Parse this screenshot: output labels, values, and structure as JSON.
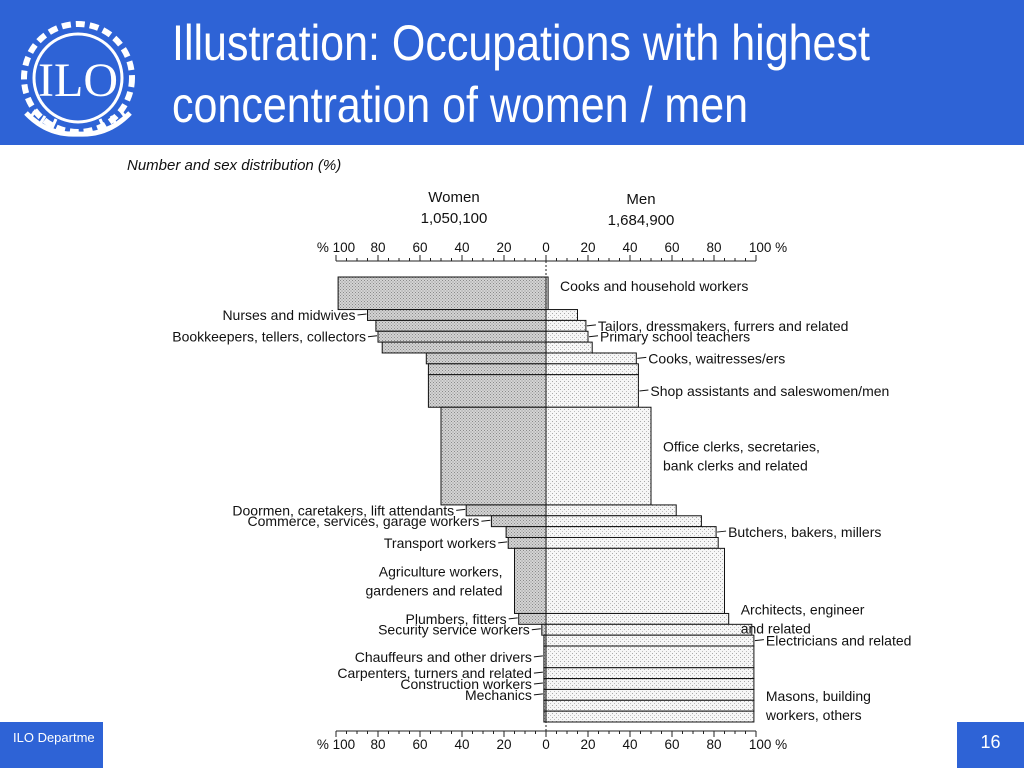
{
  "slide": {
    "title_line1": "Illustration: Occupations with highest",
    "title_line2": "concentration of women / men",
    "footer_text": "ILO Departme",
    "page_number": "16",
    "accent_color": "#2e63d6"
  },
  "logo": {
    "text": "ILO",
    "icon": "ilo-emblem-icon"
  },
  "chart_data": {
    "type": "bar",
    "orientation": "horizontal-diverging",
    "subtitle": "Number and sex distribution (%)",
    "women_header": "Women",
    "women_total": "1,050,100",
    "men_header": "Men",
    "men_total": "1,684,900",
    "x_ticks_left": [
      "% 100",
      "80",
      "60",
      "40",
      "20",
      "0"
    ],
    "x_ticks_right": [
      "20",
      "40",
      "60",
      "80",
      "100 %"
    ],
    "xlim": [
      0,
      100
    ],
    "unit": "%",
    "series_colors": {
      "women": "#c8c8c8",
      "men": "#ececec"
    },
    "occupations": [
      {
        "women": 99,
        "weight": 3,
        "label": "Cooks and household workers"
      },
      {
        "women": 85,
        "weight": 1
      },
      {
        "women": 81,
        "weight": 1
      },
      {
        "women": 80,
        "weight": 1
      },
      {
        "women": 78,
        "weight": 1
      },
      {
        "women": 57,
        "weight": 1
      },
      {
        "women": 56,
        "weight": 1
      },
      {
        "women": 56,
        "weight": 3
      },
      {
        "women": 50,
        "weight": 9
      },
      {
        "women": 38,
        "weight": 1
      },
      {
        "women": 26,
        "weight": 1
      },
      {
        "women": 19,
        "weight": 1
      },
      {
        "women": 18,
        "weight": 1
      },
      {
        "women": 15,
        "weight": 6
      },
      {
        "women": 13,
        "weight": 1
      },
      {
        "women": 2,
        "weight": 1
      },
      {
        "women": 1,
        "weight": 1
      },
      {
        "women": 1,
        "weight": 2
      },
      {
        "women": 1,
        "weight": 1
      },
      {
        "women": 1,
        "weight": 1
      },
      {
        "women": 1,
        "weight": 1
      },
      {
        "women": 1,
        "weight": 1
      },
      {
        "women": 1,
        "weight": 1
      }
    ],
    "left_annotations": [
      {
        "text": "Nurses and midwives",
        "bar": 1
      },
      {
        "text": "Bookkeepers, tellers, collectors",
        "bar": 3
      },
      {
        "text": "Doormen, caretakers, lift attendants",
        "bar": 9
      },
      {
        "text": "Commerce, services, garage workers",
        "bar": 10
      },
      {
        "text": "Transport workers",
        "bar": 12
      },
      {
        "text": "Agriculture workers,",
        "bar": 13
      },
      {
        "text": "gardeners and related",
        "bar": 13
      },
      {
        "text": "Plumbers, fitters",
        "bar": 14
      },
      {
        "text": "Security service workers",
        "bar": 15
      },
      {
        "text": "Chauffeurs and other drivers",
        "bar": 17
      },
      {
        "text": "Carpenters, turners and related",
        "bar": 18
      },
      {
        "text": "Construction workers",
        "bar": 19
      },
      {
        "text": "Mechanics",
        "bar": 20
      }
    ],
    "right_annotations": [
      {
        "text": "Tailors, dressmakers, furrers and related",
        "bar": 2
      },
      {
        "text": "Primary school teachers",
        "bar": 3
      },
      {
        "text": "Cooks, waitresses/ers",
        "bar": 5
      },
      {
        "text": "Shop assistants and saleswomen/men",
        "bar": 7
      },
      {
        "text": "Office clerks, secretaries,",
        "bar": 8
      },
      {
        "text": "bank clerks and related",
        "bar": 8
      },
      {
        "text": "Butchers, bakers, millers",
        "bar": 11
      },
      {
        "text": "Architects, engineer",
        "bar": 14
      },
      {
        "text": "and related",
        "bar": 14
      },
      {
        "text": "Electricians and related",
        "bar": 16
      },
      {
        "text": "Masons, building",
        "bar": 21
      },
      {
        "text": "workers, others",
        "bar": 21
      }
    ]
  }
}
